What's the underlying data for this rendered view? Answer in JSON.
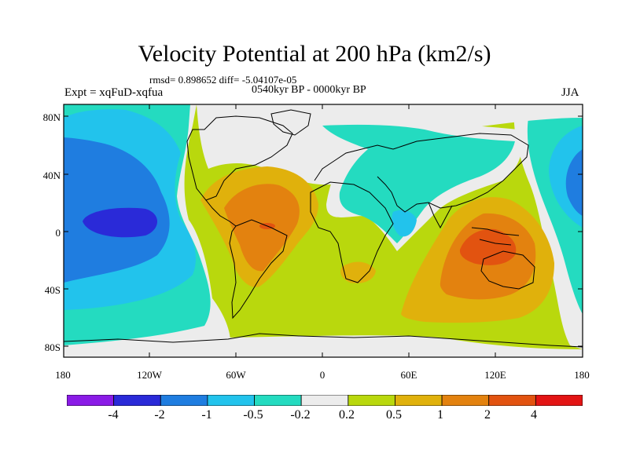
{
  "title": "Velocity Potential at 200 hPa (km2/s)",
  "stats_line": "rmsd= 0.898652 diff= -5.04107e-05",
  "experiment": "Expt = xqFuD-xqfua",
  "period": "0540kyr BP - 0000kyr BP",
  "season": "JJA",
  "map": {
    "latitude_labels": [
      "80N",
      "40N",
      "0",
      "40S",
      "80S"
    ],
    "longitude_labels": [
      "180",
      "120W",
      "60W",
      "0",
      "60E",
      "120E",
      "180"
    ]
  },
  "colorbar": {
    "colors": [
      "#8a1be6",
      "#2a2ad8",
      "#1f7de0",
      "#22c3ec",
      "#24dbc0",
      "#ececec",
      "#b9d80d",
      "#e0b10c",
      "#e3820f",
      "#e25310",
      "#e31414"
    ],
    "labels": [
      "-4",
      "-2",
      "-1",
      "-0.5",
      "-0.2",
      "0.2",
      "0.5",
      "1",
      "2",
      "4"
    ]
  }
}
